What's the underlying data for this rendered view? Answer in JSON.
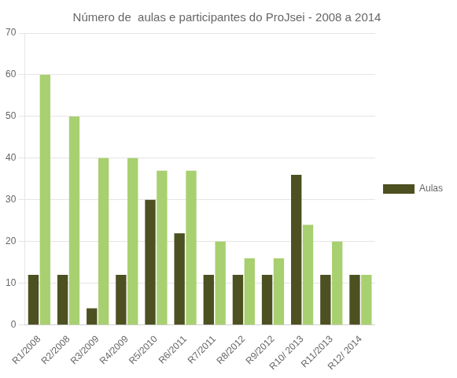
{
  "chart_data": {
    "type": "bar",
    "title": "Número de  aulas e participantes do ProJsei - 2008 a 2014",
    "categories": [
      "R1/2008",
      "R2/2008",
      "R3/2009",
      "R4/2009",
      "R5/2010",
      "R6/2011",
      "R7/2011",
      "R8/2012",
      "R9/2012",
      "R10/ 2013",
      "R11/2013",
      "R12/ 2014"
    ],
    "series": [
      {
        "name": "Aulas",
        "color": "#4d5020",
        "values": [
          12,
          12,
          4,
          12,
          30,
          22,
          12,
          12,
          12,
          36,
          12,
          12
        ]
      },
      {
        "color": "#a8d070",
        "values": [
          60,
          50,
          40,
          40,
          37,
          37,
          20,
          16,
          16,
          24,
          20,
          12
        ]
      }
    ],
    "ylim": [
      0,
      70
    ],
    "yticks": [
      0,
      10,
      20,
      30,
      40,
      50,
      60,
      70
    ],
    "grid": true,
    "legend": "right"
  }
}
